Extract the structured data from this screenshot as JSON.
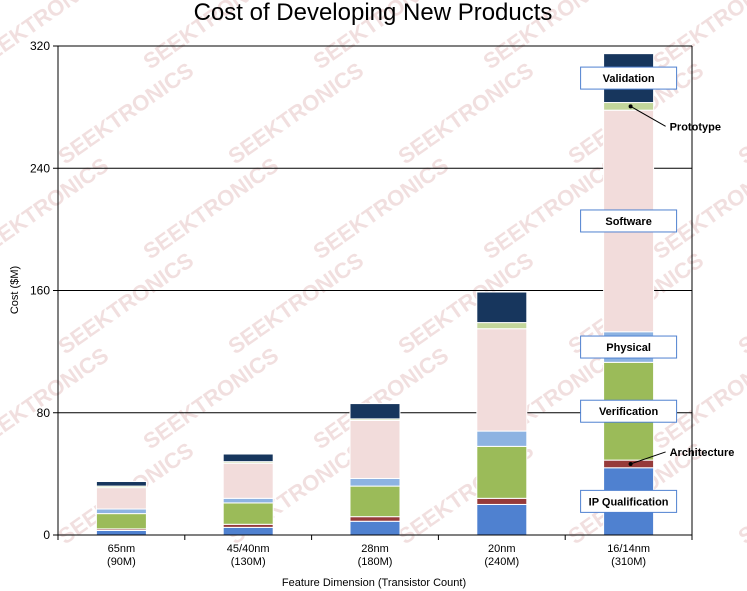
{
  "chart_data": {
    "type": "bar",
    "stacked": true,
    "title": "Cost of Developing New Products",
    "xlabel": "Feature Dimension (Transistor Count)",
    "ylabel": "Cost ($M)",
    "ylim": [
      0,
      320
    ],
    "yticks": [
      "0",
      "80",
      "160",
      "240",
      "320"
    ],
    "grid": true,
    "categories": [
      {
        "line1": "65nm",
        "line2": "(90M)"
      },
      {
        "line1": "45/40nm",
        "line2": "(130M)"
      },
      {
        "line1": "28nm",
        "line2": "(180M)"
      },
      {
        "line1": "20nm",
        "line2": "(240M)"
      },
      {
        "line1": "16/14nm",
        "line2": "(310M)"
      }
    ],
    "series": [
      {
        "name": "IP Qualification",
        "color": "#4f81d0",
        "values": [
          3,
          5,
          9,
          20,
          44
        ]
      },
      {
        "name": "Architecture",
        "color": "#963a3a",
        "values": [
          1,
          2,
          3,
          4,
          5
        ]
      },
      {
        "name": "Verification",
        "color": "#9bbb59",
        "values": [
          10,
          14,
          20,
          34,
          64
        ]
      },
      {
        "name": "Physical",
        "color": "#8db3e2",
        "values": [
          3,
          3,
          5,
          10,
          20
        ]
      },
      {
        "name": "Software",
        "color": "#f2dcdb",
        "values": [
          14,
          23,
          38,
          67,
          145
        ]
      },
      {
        "name": "Prototype",
        "color": "#c3d69b",
        "values": [
          1,
          1,
          1,
          4,
          5
        ]
      },
      {
        "name": "Validation",
        "color": "#17365d",
        "values": [
          3,
          5,
          10,
          20,
          32
        ]
      }
    ],
    "box_labels": [
      "Validation",
      "Software",
      "Physical",
      "Verification",
      "IP Qualification"
    ],
    "annotation_labels": [
      "Prototype",
      "Architecture"
    ],
    "watermark": "SEEKTRONICS"
  }
}
